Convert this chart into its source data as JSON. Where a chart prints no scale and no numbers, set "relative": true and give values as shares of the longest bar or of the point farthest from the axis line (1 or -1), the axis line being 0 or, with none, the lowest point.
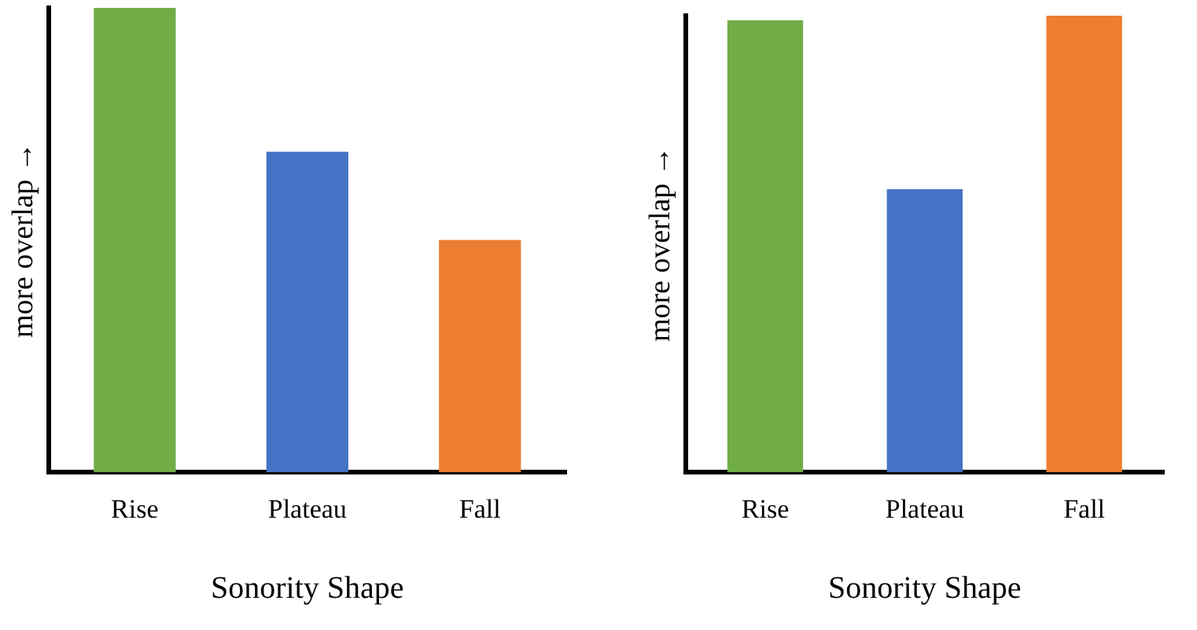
{
  "chart_data": [
    {
      "type": "bar",
      "relative": true,
      "xlabel": "Sonority Shape",
      "ylabel": "more overlap →",
      "categories": [
        "Rise",
        "Plateau",
        "Fall"
      ],
      "values": [
        1,
        0.69,
        0.5
      ],
      "colors": [
        "#70ad47",
        "#4472c4",
        "#ed7d31"
      ],
      "grid": false,
      "legend": false
    },
    {
      "type": "bar",
      "relative": true,
      "xlabel": "Sonority Shape",
      "ylabel": "more overlap →",
      "categories": [
        "Rise",
        "Plateau",
        "Fall"
      ],
      "values": [
        0.99,
        0.62,
        1
      ],
      "colors": [
        "#70ad47",
        "#4472c4",
        "#ed7d31"
      ],
      "grid": false,
      "legend": false
    }
  ]
}
